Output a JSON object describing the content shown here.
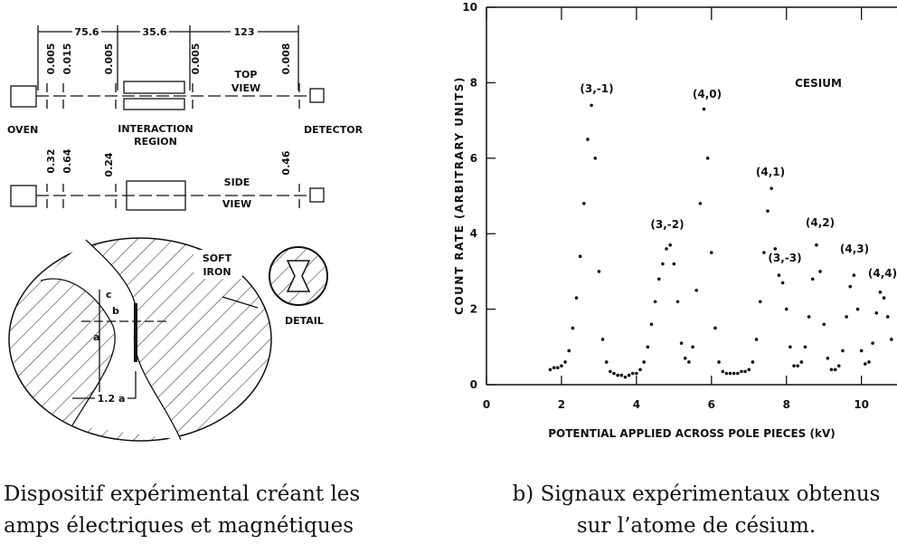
{
  "diagram": {
    "dims": [
      "75.6",
      "35.6",
      "123"
    ],
    "top_gaps": [
      "0.005",
      "0.015",
      "0.005",
      "0.005",
      "0.008"
    ],
    "top_view": [
      "TOP",
      "VIEW"
    ],
    "oven": "OVEN",
    "interaction": [
      "INTERACTION",
      "REGION"
    ],
    "detector": "DETECTOR",
    "side_gaps": [
      "0.32",
      "0.64",
      "0.24",
      "0.46"
    ],
    "side_view": [
      "SIDE",
      "VIEW"
    ],
    "soft_iron": [
      "SOFT",
      "IRON"
    ],
    "detail": "DETAIL",
    "letters": [
      "c",
      "b",
      "a",
      "1.2 a"
    ]
  },
  "chart_data": {
    "type": "scatter",
    "x_label": "POTENTIAL APPLIED ACROSS POLE PIECES (kV)",
    "y_label": "COUNT RATE (ARBITRARY UNITS)",
    "annotations": [
      "(3,-1)",
      "(4,0)",
      "CESIUM",
      "(4,1)",
      "(3,-2)",
      "(4,2)",
      "(3,-3)",
      "(4,3)",
      "(4,4)"
    ],
    "color": "#111111",
    "xlim": [
      0,
      10.9
    ],
    "ylim": [
      0,
      10
    ],
    "xticks": [
      0,
      2,
      4,
      6,
      8,
      10
    ],
    "yticks": [
      0,
      2,
      4,
      6,
      8,
      10
    ],
    "x": [
      1.7,
      1.8,
      1.9,
      2.0,
      2.1,
      2.2,
      2.3,
      2.4,
      2.5,
      2.6,
      2.7,
      2.8,
      2.9,
      3.0,
      3.1,
      3.2,
      3.3,
      3.4,
      3.5,
      3.6,
      3.7,
      3.8,
      3.9,
      4.0,
      4.1,
      4.2,
      4.3,
      4.4,
      4.5,
      4.6,
      4.7,
      4.8,
      4.9,
      5.0,
      5.1,
      5.2,
      5.3,
      5.4,
      5.5,
      5.6,
      5.7,
      5.8,
      5.9,
      6.0,
      6.1,
      6.2,
      6.3,
      6.4,
      6.5,
      6.6,
      6.7,
      6.8,
      6.9,
      7.0,
      7.1,
      7.2,
      7.3,
      7.4,
      7.5,
      7.6,
      7.7,
      7.8,
      7.9,
      8.0,
      8.1,
      8.2,
      8.3,
      8.4,
      8.5,
      8.6,
      8.7,
      8.8,
      8.9,
      9.0,
      9.1,
      9.2,
      9.3,
      9.4,
      9.5,
      9.6,
      9.7,
      9.8,
      9.9,
      10.0,
      10.1,
      10.2,
      10.3,
      10.4,
      10.5,
      10.6,
      10.7,
      10.8
    ],
    "values": [
      0.4,
      0.45,
      0.45,
      0.5,
      0.6,
      0.9,
      1.5,
      2.3,
      3.4,
      4.8,
      6.5,
      7.4,
      6.0,
      3.0,
      1.2,
      0.6,
      0.35,
      0.3,
      0.25,
      0.25,
      0.2,
      0.25,
      0.3,
      0.3,
      0.4,
      0.6,
      1.0,
      1.6,
      2.2,
      2.8,
      3.2,
      3.6,
      3.7,
      3.2,
      2.2,
      1.1,
      0.7,
      0.6,
      1.0,
      2.5,
      4.8,
      7.3,
      6.0,
      3.5,
      1.5,
      0.6,
      0.35,
      0.3,
      0.3,
      0.3,
      0.3,
      0.35,
      0.35,
      0.4,
      0.6,
      1.2,
      2.2,
      3.5,
      4.6,
      5.2,
      3.6,
      2.9,
      2.7,
      2.0,
      1.0,
      0.5,
      0.5,
      0.6,
      1.0,
      1.8,
      2.8,
      3.7,
      3.0,
      1.6,
      0.7,
      0.4,
      0.4,
      0.5,
      0.9,
      1.8,
      2.6,
      2.9,
      2.0,
      0.9,
      0.55,
      0.6,
      1.1,
      1.9,
      2.45,
      2.3,
      1.8,
      1.2
    ]
  },
  "captions": {
    "a": [
      "Dispositif expérimental créant les",
      "amps électriques et magnétiques"
    ],
    "b": [
      "b) Signaux expérimentaux obtenus",
      "sur l’atome de césium."
    ]
  }
}
